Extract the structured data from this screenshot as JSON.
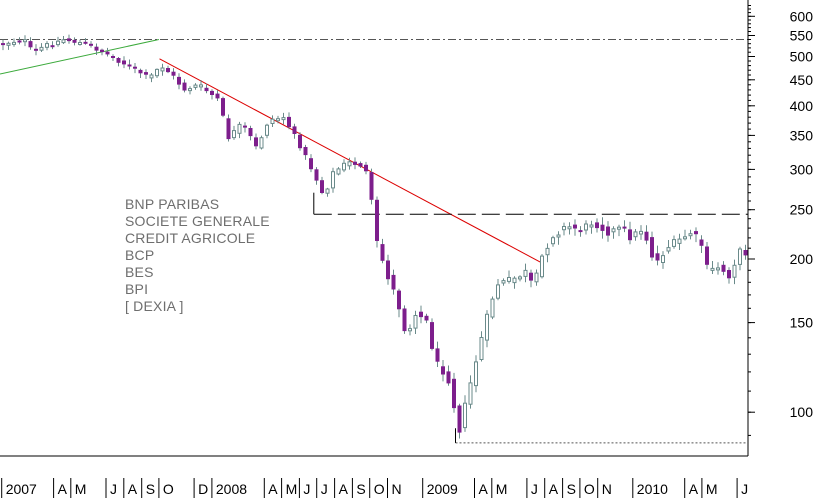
{
  "chart_data": {
    "type": "candlestick",
    "title": "",
    "xlabel": "",
    "ylabel": "",
    "y_scale": "log",
    "ylim": [
      82,
      640
    ],
    "y_ticks": [
      100,
      150,
      200,
      250,
      300,
      350,
      400,
      450,
      500,
      550,
      600
    ],
    "xlim": [
      "2006-12-29",
      "2010-07-20"
    ],
    "x_ticks": [
      {
        "date": "2007-01-01",
        "label": "2007"
      },
      {
        "date": "2007-04-01",
        "label": "A"
      },
      {
        "date": "2007-05-01",
        "label": "M"
      },
      {
        "date": "2007-07-01",
        "label": "J"
      },
      {
        "date": "2007-08-01",
        "label": "A"
      },
      {
        "date": "2007-09-01",
        "label": "S"
      },
      {
        "date": "2007-10-01",
        "label": "O"
      },
      {
        "date": "2007-12-01",
        "label": "D"
      },
      {
        "date": "2008-01-01",
        "label": "2008"
      },
      {
        "date": "2008-04-01",
        "label": "A"
      },
      {
        "date": "2008-05-01",
        "label": "M"
      },
      {
        "date": "2008-06-01",
        "label": "J"
      },
      {
        "date": "2008-07-01",
        "label": "J"
      },
      {
        "date": "2008-08-01",
        "label": "A"
      },
      {
        "date": "2008-09-01",
        "label": "S"
      },
      {
        "date": "2008-10-01",
        "label": "O"
      },
      {
        "date": "2008-11-01",
        "label": "N"
      },
      {
        "date": "2009-01-01",
        "label": "2009"
      },
      {
        "date": "2009-04-01",
        "label": "A"
      },
      {
        "date": "2009-05-01",
        "label": "M"
      },
      {
        "date": "2009-07-01",
        "label": "J"
      },
      {
        "date": "2009-08-01",
        "label": "A"
      },
      {
        "date": "2009-09-01",
        "label": "S"
      },
      {
        "date": "2009-10-01",
        "label": "O"
      },
      {
        "date": "2009-11-01",
        "label": "N"
      },
      {
        "date": "2010-01-01",
        "label": "2010"
      },
      {
        "date": "2010-04-01",
        "label": "A"
      },
      {
        "date": "2010-05-01",
        "label": "M"
      },
      {
        "date": "2010-07-01",
        "label": "J"
      }
    ],
    "close_path": [
      [
        "2006-12-29",
        530
      ],
      [
        "2007-02-05",
        540
      ],
      [
        "2007-02-20",
        510
      ],
      [
        "2007-03-15",
        525
      ],
      [
        "2007-04-15",
        540
      ],
      [
        "2007-05-20",
        530
      ],
      [
        "2007-06-20",
        512
      ],
      [
        "2007-07-20",
        490
      ],
      [
        "2007-08-20",
        470
      ],
      [
        "2007-09-10",
        452
      ],
      [
        "2007-10-01",
        480
      ],
      [
        "2007-10-20",
        460
      ],
      [
        "2007-11-10",
        430
      ],
      [
        "2007-12-05",
        440
      ],
      [
        "2008-01-10",
        410
      ],
      [
        "2008-01-25",
        345
      ],
      [
        "2008-02-20",
        370
      ],
      [
        "2008-03-15",
        330
      ],
      [
        "2008-04-05",
        375
      ],
      [
        "2008-05-01",
        380
      ],
      [
        "2008-06-01",
        330
      ],
      [
        "2008-06-25",
        290
      ],
      [
        "2008-07-10",
        265
      ],
      [
        "2008-07-25",
        295
      ],
      [
        "2008-08-20",
        310
      ],
      [
        "2008-09-15",
        305
      ],
      [
        "2008-09-25",
        290
      ],
      [
        "2008-10-10",
        215
      ],
      [
        "2008-10-25",
        190
      ],
      [
        "2008-11-15",
        165
      ],
      [
        "2008-12-01",
        140
      ],
      [
        "2008-12-15",
        158
      ],
      [
        "2009-01-05",
        150
      ],
      [
        "2009-01-20",
        125
      ],
      [
        "2009-02-10",
        118
      ],
      [
        "2009-03-02",
        92
      ],
      [
        "2009-03-20",
        112
      ],
      [
        "2009-04-10",
        140
      ],
      [
        "2009-05-05",
        178
      ],
      [
        "2009-06-01",
        182
      ],
      [
        "2009-06-25",
        188
      ],
      [
        "2009-07-10",
        175
      ],
      [
        "2009-07-20",
        198
      ],
      [
        "2009-08-10",
        222
      ],
      [
        "2009-09-05",
        232
      ],
      [
        "2009-10-01",
        228
      ],
      [
        "2009-10-20",
        237
      ],
      [
        "2009-11-15",
        226
      ],
      [
        "2009-12-10",
        230
      ],
      [
        "2009-12-25",
        220
      ],
      [
        "2010-01-15",
        230
      ],
      [
        "2010-02-05",
        195
      ],
      [
        "2010-02-25",
        210
      ],
      [
        "2010-03-20",
        218
      ],
      [
        "2010-04-10",
        226
      ],
      [
        "2010-04-28",
        212
      ],
      [
        "2010-05-08",
        188
      ],
      [
        "2010-05-25",
        193
      ],
      [
        "2010-06-15",
        185
      ],
      [
        "2010-06-30",
        207
      ],
      [
        "2010-07-15",
        205
      ]
    ],
    "trendlines": [
      {
        "style": "solid",
        "color": "#3caa3c",
        "points": [
          [
            "2006-12-29",
            462
          ],
          [
            "2007-10-01",
            540
          ]
        ]
      },
      {
        "style": "solid",
        "color": "#dc0000",
        "points": [
          [
            "2007-10-02",
            495
          ],
          [
            "2009-07-25",
            197
          ]
        ]
      },
      {
        "style": "dash-dot",
        "color": "#555555",
        "points": [
          [
            "2006-12-29",
            540
          ],
          [
            "2010-07-20",
            540
          ]
        ]
      },
      {
        "style": "dashed",
        "color": "#000000",
        "points": [
          [
            "2008-06-26",
            245
          ],
          [
            "2010-07-20",
            245
          ]
        ]
      },
      {
        "style": "solid",
        "color": "#000000",
        "points": [
          [
            "2008-06-26",
            245
          ],
          [
            "2008-06-26",
            270
          ]
        ]
      },
      {
        "style": "dotted",
        "color": "#555555",
        "points": [
          [
            "2009-02-27",
            87
          ],
          [
            "2010-07-20",
            87
          ]
        ]
      },
      {
        "style": "solid",
        "color": "#000000",
        "points": [
          [
            "2009-02-27",
            87
          ],
          [
            "2009-02-27",
            93
          ]
        ]
      }
    ],
    "colors": {
      "down": "#7d1e8c",
      "up": "#ffffff",
      "up_outline": "#6a8a8a",
      "wick": "#6a8a8a"
    },
    "grid": false
  },
  "legend": {
    "items": [
      "BNP PARIBAS",
      "SOCIETE GENERALE",
      "CREDIT AGRICOLE",
      "BCP",
      "BES",
      "BPI",
      "[ DEXIA ]"
    ],
    "color": "#6e6e6e"
  }
}
